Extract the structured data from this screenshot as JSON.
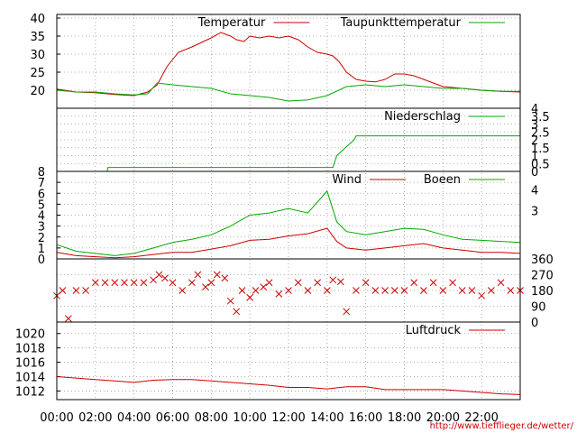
{
  "footer": "http://www.tiefflieger.de/wetter/",
  "x_axis": {
    "ticks": [
      "00:00",
      "02:00",
      "04:00",
      "06:00",
      "08:00",
      "10:00",
      "12:00",
      "14:00",
      "16:00",
      "18:00",
      "20:00",
      "22:00"
    ],
    "range_hours": [
      0,
      24
    ]
  },
  "colors": {
    "red": "#cc0000",
    "green": "#00aa00",
    "grid": "#999999",
    "frame": "#000000"
  },
  "chart_data": [
    {
      "type": "line",
      "ylim": [
        15,
        41
      ],
      "left_ticks": [
        "20",
        "25",
        "30",
        "35",
        "40"
      ],
      "legend_placement": "top-right",
      "grid": true,
      "series": [
        {
          "name": "Temperatur",
          "color": "#cc0000",
          "x": [
            0,
            1,
            2,
            3,
            4,
            4.7,
            5.2,
            5.7,
            6.3,
            7,
            8,
            8.5,
            9,
            9.3,
            9.7,
            10,
            10.5,
            11,
            11.5,
            12,
            12.5,
            13,
            13.5,
            14,
            14.3,
            14.6,
            15,
            15.5,
            16,
            16.5,
            17,
            17.5,
            18,
            18.5,
            19,
            19.5,
            20,
            21,
            22,
            23,
            24
          ],
          "y": [
            20.3,
            19.5,
            19.3,
            18.8,
            18.5,
            19.5,
            21.5,
            26.5,
            30.5,
            32,
            34.5,
            36,
            35,
            34,
            33.5,
            35,
            34.5,
            35,
            34.5,
            35,
            34,
            32,
            30.5,
            30,
            29.5,
            28,
            25,
            23,
            22.5,
            22.3,
            23,
            24.5,
            24.5,
            24,
            23,
            22,
            21,
            20.5,
            20,
            19.7,
            19.5
          ]
        },
        {
          "name": "Taupunkttemperatur",
          "color": "#00aa00",
          "x": [
            0,
            1,
            2,
            3,
            4,
            4.7,
            5.2,
            6,
            7,
            8,
            9,
            10,
            11,
            12,
            13,
            14,
            15,
            16,
            17,
            18,
            19,
            20,
            21,
            22,
            23,
            24
          ],
          "y": [
            20,
            19.5,
            19.5,
            19,
            18.7,
            19,
            22,
            21.5,
            21,
            20.5,
            19,
            18.5,
            18,
            17,
            17.3,
            18.5,
            21,
            21.5,
            21,
            21.5,
            21,
            20.5,
            20.5,
            20,
            19.7,
            19.7
          ]
        }
      ]
    },
    {
      "type": "line",
      "ylim": [
        0,
        4
      ],
      "right_ticks": [
        "0",
        "0.5",
        "1",
        "1.5",
        "2",
        "2.5",
        "3",
        "3.5",
        "4"
      ],
      "legend_placement": "top-right",
      "grid": true,
      "series": [
        {
          "name": "Niederschlag",
          "color": "#00aa00",
          "x": [
            0,
            2.6,
            2.65,
            14.3,
            14.5,
            15.4,
            15.5,
            24
          ],
          "y": [
            0,
            0,
            0.25,
            0.25,
            1,
            2,
            2.25,
            2.25
          ]
        }
      ]
    },
    {
      "type": "line",
      "ylim": [
        0,
        8
      ],
      "left_ticks": [
        "0",
        "1",
        "2",
        "3",
        "4",
        "5",
        "6",
        "7",
        "8"
      ],
      "right_ticks": [
        "3",
        "4"
      ],
      "legend_placement": "top-right",
      "grid": true,
      "series": [
        {
          "name": "Wind",
          "color": "#cc0000",
          "x": [
            0,
            1,
            2,
            3,
            4,
            5,
            6,
            7,
            8,
            9,
            10,
            11,
            12,
            13,
            14,
            14.5,
            15,
            16,
            17,
            18,
            19,
            20,
            21,
            22,
            23,
            24
          ],
          "y": [
            0.6,
            0.3,
            0.2,
            0.1,
            0.2,
            0.4,
            0.6,
            0.6,
            0.9,
            1.2,
            1.7,
            1.8,
            2.1,
            2.3,
            2.8,
            1.6,
            1,
            0.8,
            1,
            1.2,
            1.4,
            1,
            0.8,
            0.6,
            0.6,
            0.5
          ]
        },
        {
          "name": "Boeen",
          "color": "#00aa00",
          "x": [
            0,
            1,
            2,
            3,
            4,
            5,
            6,
            7,
            8,
            9,
            10,
            11,
            12,
            13,
            14,
            14.5,
            15,
            16,
            17,
            18,
            19,
            20,
            21,
            22,
            23,
            24
          ],
          "y": [
            1.3,
            0.7,
            0.5,
            0.3,
            0.5,
            1,
            1.5,
            1.8,
            2.2,
            3,
            4,
            4.2,
            4.6,
            4.2,
            6.2,
            3.4,
            2.5,
            2.2,
            2.5,
            2.8,
            2.7,
            2.2,
            1.8,
            1.7,
            1.6,
            1.5
          ]
        }
      ]
    },
    {
      "type": "scatter",
      "ylim": [
        0,
        360
      ],
      "right_ticks": [
        "0",
        "90",
        "180",
        "270",
        "360"
      ],
      "grid": true,
      "series": [
        {
          "name": "",
          "color": "#cc0000",
          "marker": "x",
          "x": [
            0,
            0.3,
            0.6,
            1,
            1.5,
            2,
            2.5,
            3,
            3.5,
            4,
            4.5,
            5,
            5.3,
            5.6,
            6,
            6.5,
            7,
            7.3,
            7.7,
            8,
            8.3,
            8.7,
            9,
            9.3,
            9.6,
            10,
            10.3,
            10.7,
            11,
            11.5,
            12,
            12.5,
            13,
            13.5,
            14,
            14.3,
            14.7,
            15,
            15.5,
            16,
            16.5,
            17,
            17.5,
            18,
            18.5,
            19,
            19.5,
            20,
            20.5,
            21,
            21.5,
            22,
            22.5,
            23,
            23.5,
            24
          ],
          "y": [
            150,
            180,
            20,
            180,
            180,
            225,
            225,
            225,
            225,
            225,
            225,
            240,
            270,
            250,
            225,
            180,
            225,
            270,
            200,
            225,
            270,
            250,
            120,
            60,
            180,
            140,
            180,
            200,
            225,
            160,
            180,
            225,
            180,
            225,
            180,
            240,
            230,
            60,
            180,
            225,
            180,
            180,
            180,
            180,
            225,
            180,
            225,
            180,
            225,
            180,
            180,
            150,
            180,
            225,
            180,
            180
          ]
        }
      ]
    },
    {
      "type": "line",
      "ylim": [
        1010.8,
        1021.6
      ],
      "left_ticks": [
        "1012",
        "1014",
        "1016",
        "1018",
        "1020"
      ],
      "legend_placement": "top-right",
      "grid": true,
      "series": [
        {
          "name": "Luftdruck",
          "color": "#cc0000",
          "x": [
            0,
            1,
            2,
            3,
            4,
            5,
            6,
            7,
            8,
            9,
            10,
            11,
            12,
            13,
            14,
            15,
            16,
            17,
            18,
            19,
            20,
            21,
            22,
            23,
            24
          ],
          "y": [
            1014,
            1013.8,
            1013.6,
            1013.4,
            1013.2,
            1013.5,
            1013.6,
            1013.6,
            1013.4,
            1013.2,
            1013,
            1012.8,
            1012.5,
            1012.5,
            1012.3,
            1012.6,
            1012.6,
            1012.2,
            1012.2,
            1012.2,
            1012.2,
            1012,
            1011.8,
            1011.6,
            1011.5
          ]
        }
      ]
    }
  ]
}
